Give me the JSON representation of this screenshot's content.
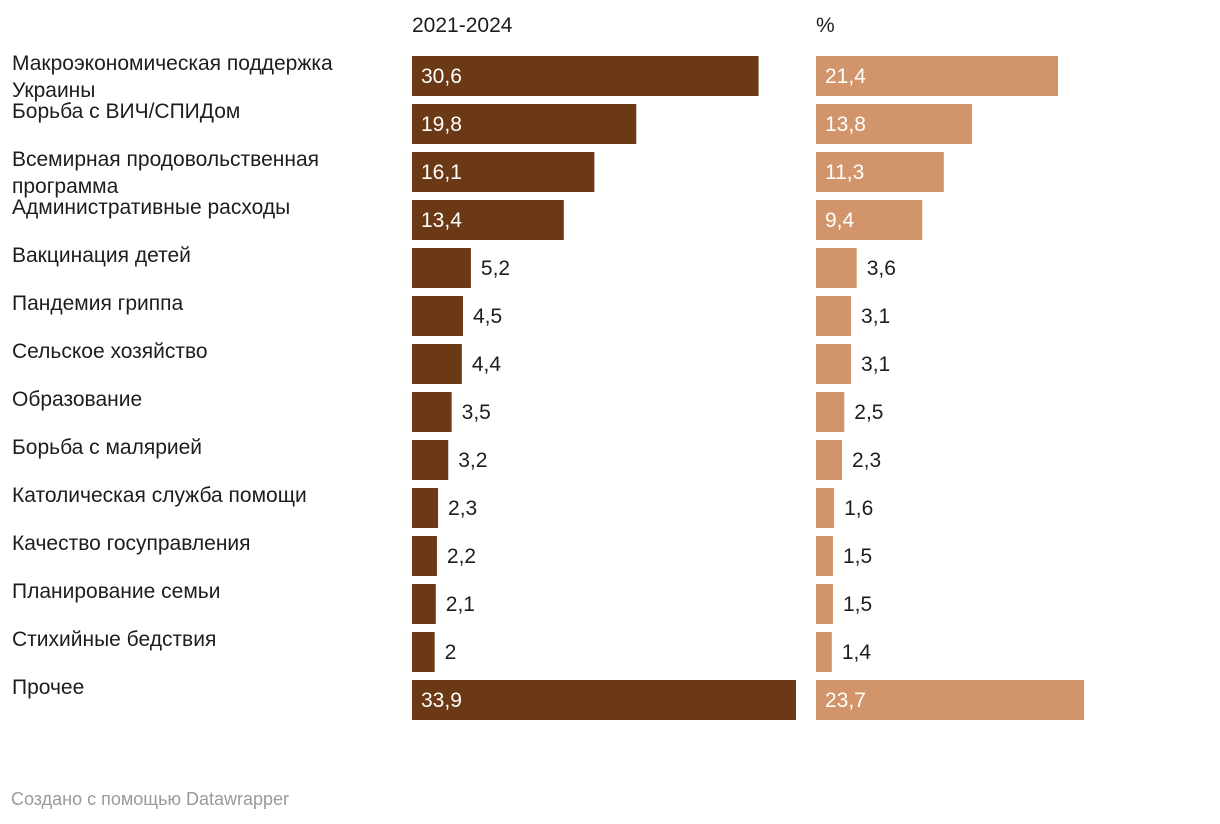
{
  "chart_data": {
    "type": "bar",
    "orientation": "horizontal",
    "categories": [
      "Макроэкономическая поддержка Украины",
      "Борьба с ВИЧ/СПИДом",
      "Всемирная продовольственная программа",
      "Административные расходы",
      "Вакцинация детей",
      "Пандемия гриппа",
      "Сельское хозяйство",
      "Образование",
      "Борьба с малярией",
      "Католическая служба помощи",
      "Качество госуправления",
      "Планирование семьи",
      "Стихийные бедствия",
      "Прочее"
    ],
    "series": [
      {
        "name": "2021-2024",
        "color": "#6b3915",
        "values": [
          30.6,
          19.8,
          16.1,
          13.4,
          5.2,
          4.5,
          4.4,
          3.5,
          3.2,
          2.3,
          2.2,
          2.1,
          2,
          33.9
        ],
        "labels": [
          "30,6",
          "19,8",
          "16,1",
          "13,4",
          "5,2",
          "4,5",
          "4,4",
          "3,5",
          "3,2",
          "2,3",
          "2,2",
          "2,1",
          "2",
          "33,9"
        ]
      },
      {
        "name": "%",
        "color": "#d1946b",
        "values": [
          21.4,
          13.8,
          11.3,
          9.4,
          3.6,
          3.1,
          3.1,
          2.5,
          2.3,
          1.6,
          1.5,
          1.5,
          1.4,
          23.7
        ],
        "labels": [
          "21,4",
          "13,8",
          "11,3",
          "9,4",
          "3,6",
          "3,1",
          "3,1",
          "2,5",
          "2,3",
          "1,6",
          "1,5",
          "1,5",
          "1,4",
          "23,7"
        ]
      }
    ],
    "grid": false,
    "legend": "none"
  },
  "footer": {
    "credit": "Создано с помощью Datawrapper"
  }
}
